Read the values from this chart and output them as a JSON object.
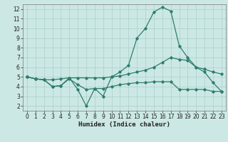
{
  "xlabel": "Humidex (Indice chaleur)",
  "x": [
    0,
    1,
    2,
    3,
    4,
    5,
    6,
    7,
    8,
    9,
    10,
    11,
    12,
    13,
    14,
    15,
    16,
    17,
    18,
    19,
    20,
    21,
    22,
    23
  ],
  "line_peak": [
    5.0,
    4.8,
    4.7,
    4.0,
    4.1,
    4.9,
    3.7,
    2.0,
    3.8,
    3.0,
    5.0,
    5.5,
    6.2,
    9.0,
    10.0,
    11.7,
    12.2,
    11.8,
    8.2,
    7.0,
    6.0,
    5.5,
    4.4,
    3.5
  ],
  "line_mid": [
    5.0,
    4.8,
    4.7,
    4.7,
    4.8,
    4.9,
    4.9,
    4.9,
    4.9,
    4.9,
    5.0,
    5.1,
    5.3,
    5.5,
    5.7,
    6.0,
    6.5,
    7.0,
    6.8,
    6.7,
    6.0,
    5.8,
    5.5,
    5.3
  ],
  "line_flat": [
    5.0,
    4.8,
    4.7,
    4.0,
    4.1,
    4.8,
    4.2,
    3.7,
    3.8,
    3.8,
    4.0,
    4.2,
    4.3,
    4.4,
    4.4,
    4.5,
    4.5,
    4.5,
    3.7,
    3.7,
    3.7,
    3.7,
    3.5,
    3.5
  ],
  "color": "#2e7d6e",
  "bg_color": "#cce8e4",
  "grid_color": "#aacfcc",
  "ylim": [
    1.5,
    12.5
  ],
  "xlim": [
    -0.5,
    23.5
  ],
  "yticks": [
    2,
    3,
    4,
    5,
    6,
    7,
    8,
    9,
    10,
    11,
    12
  ],
  "xticks": [
    0,
    1,
    2,
    3,
    4,
    5,
    6,
    7,
    8,
    9,
    10,
    11,
    12,
    13,
    14,
    15,
    16,
    17,
    18,
    19,
    20,
    21,
    22,
    23
  ],
  "tick_fontsize": 5.5,
  "xlabel_fontsize": 6.5
}
